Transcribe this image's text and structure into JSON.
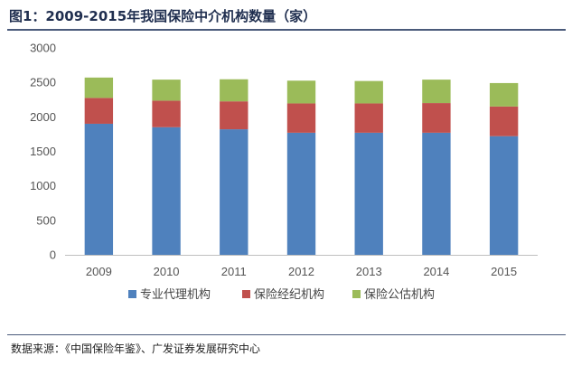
{
  "figure": {
    "title": "图1：2009-2015年我国保险中介机构数量（家）",
    "source": "数据来源：《中国保险年鉴》、广发证券发展研究中心"
  },
  "chart_data": {
    "type": "bar",
    "stacked": true,
    "title": "",
    "xlabel": "",
    "ylabel": "",
    "categories": [
      "2009",
      "2010",
      "2011",
      "2012",
      "2013",
      "2014",
      "2015"
    ],
    "ylim": [
      0,
      3000
    ],
    "yticks": [
      0,
      500,
      1000,
      1500,
      2000,
      2500,
      3000
    ],
    "grid": false,
    "legend_position": "bottom",
    "series": [
      {
        "name": "专业代理机构",
        "color": "#4f81bd",
        "values": [
          1900,
          1850,
          1820,
          1770,
          1770,
          1770,
          1720
        ]
      },
      {
        "name": "保险经纪机构",
        "color": "#c0504d",
        "values": [
          375,
          385,
          405,
          425,
          425,
          430,
          430
        ]
      },
      {
        "name": "保险公估机构",
        "color": "#9bbb59",
        "values": [
          295,
          305,
          320,
          330,
          325,
          340,
          340
        ]
      }
    ]
  }
}
